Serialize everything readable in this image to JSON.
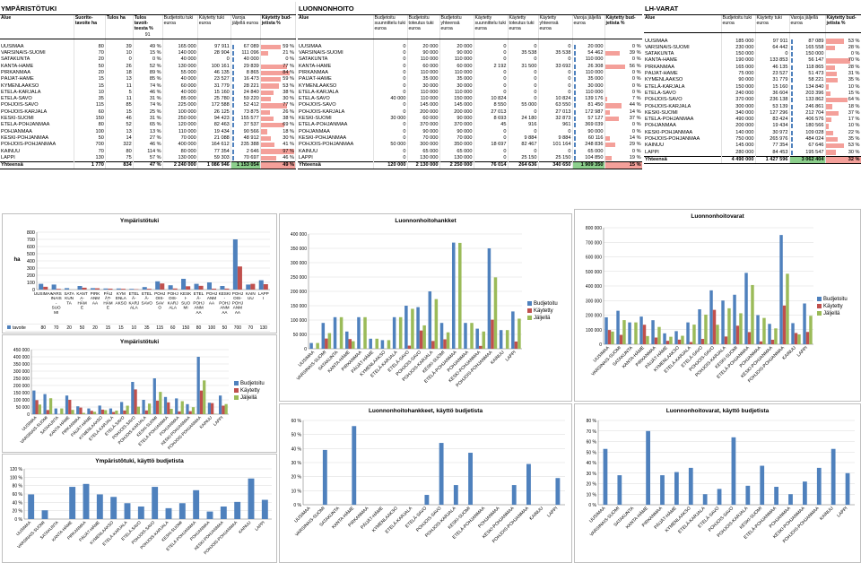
{
  "regions": [
    "UUSIMAA",
    "VARSINAIS-SUOMI",
    "SATAKUNTA",
    "KANTA-HÄME",
    "PIRKANMAA",
    "PÄIJÄT-HÄME",
    "KYMENLAAKSO",
    "ETELÄ-KARJALA",
    "ETELÄ-SAVO",
    "POHJOIS-SAVO",
    "POHJOIS-KARJALA",
    "KESKI-SUOMI",
    "ETELÄ-POHJANMAA",
    "POHJANMAA",
    "KESKI-POHJANMAA",
    "POHJOIS-POHJANMAA",
    "KAINUU",
    "LAPPI"
  ],
  "region_labels_wrapped": [
    "UUSIMAA",
    "VARS INAIS - SUO MI",
    "SATA KUN TA",
    "KANT A- HÄM E",
    "PIRK ANM AA",
    "PÄIJ ÄT- HÄM E",
    "KYM ENLA AKSO",
    "ETEL Ä- KARJ ALA",
    "ETEL Ä- SAVO",
    "POHJ OIS- SAV O",
    "POHJ OIS- KARJ ALA",
    "KESK I- SUO MI",
    "ETEL Ä- POHJ ANM AA",
    "POHJ ANM AA",
    "KESKI - POHJ ANM AA",
    "POHJ OIS- POHJ ANM AA",
    "KAIN UU",
    "LAPP I"
  ],
  "colors": {
    "blue": "#4f81bd",
    "red": "#c0504d",
    "green": "#9bbb59",
    "pctbar": "#f4a09a",
    "total_green": "#8ccf8c",
    "axis": "#808080",
    "grid": "#d9d9d9"
  },
  "section1": {
    "title": "YMPÄRISTÖTUKI",
    "region_header": "Alue",
    "headers": [
      "Suorite-tavoite ha",
      "Tulos ha",
      "Tulos tavoit-teesta %",
      "Budjetoitu tuki euroa",
      "Käytetty tuki euroa",
      "Varoja jäljellä euroa",
      "Käytetty bud-jetista %"
    ],
    "extra_header": "91",
    "rows": [
      [
        "80",
        "39",
        "49 %",
        "165 000",
        "97 911",
        "67 089",
        "59 %"
      ],
      [
        "70",
        "10",
        "15 %",
        "140 000",
        "28 904",
        "111 096",
        "21 %"
      ],
      [
        "20",
        "0",
        "0 %",
        "40 000",
        "0",
        "40 000",
        "0 %"
      ],
      [
        "50",
        "26",
        "52 %",
        "130 000",
        "100 161",
        "29 839",
        "77 %"
      ],
      [
        "20",
        "18",
        "89 %",
        "55 000",
        "46 135",
        "8 865",
        "84 %"
      ],
      [
        "15",
        "13",
        "85 %",
        "40 000",
        "23 527",
        "16 473",
        "59 %"
      ],
      [
        "15",
        "11",
        "74 %",
        "60 000",
        "31 779",
        "28 221",
        "53 %"
      ],
      [
        "10",
        "5",
        "46 %",
        "40 000",
        "15 160",
        "24 840",
        "38 %"
      ],
      [
        "35",
        "11",
        "31 %",
        "85 000",
        "25 780",
        "59 220",
        "30 %"
      ],
      [
        "115",
        "85",
        "74 %",
        "225 000",
        "172 588",
        "52 412",
        "77 %"
      ],
      [
        "60",
        "15",
        "25 %",
        "100 000",
        "26 125",
        "73 875",
        "26 %"
      ],
      [
        "150",
        "46",
        "31 %",
        "250 000",
        "94 423",
        "155 577",
        "38 %"
      ],
      [
        "80",
        "52",
        "65 %",
        "120 000",
        "82 463",
        "37 537",
        "69 %"
      ],
      [
        "100",
        "13",
        "13 %",
        "110 000",
        "19 434",
        "90 566",
        "18 %"
      ],
      [
        "50",
        "14",
        "27 %",
        "70 000",
        "21 088",
        "48 912",
        "30 %"
      ],
      [
        "700",
        "322",
        "46 %",
        "400 000",
        "164 612",
        "235 388",
        "41 %"
      ],
      [
        "70",
        "80",
        "114 %",
        "80 000",
        "77 354",
        "2 646",
        "97 %"
      ],
      [
        "130",
        "75",
        "57 %",
        "130 000",
        "59 303",
        "70 697",
        "46 %"
      ]
    ],
    "total": [
      "Yhteensä",
      "1 770",
      "834",
      "47 %",
      "2 240 000",
      "1 086 946",
      "1 153 054",
      "49 %"
    ]
  },
  "section2": {
    "title": "LUONNONHOITO",
    "region_header": "Alue",
    "headers": [
      "Budjetoitu suunnittelu tuki euroa",
      "Budjetoitu toteutus tuki euroa",
      "Budjetoitu yhteensä euroa",
      "Käytetty suunnittelu tuki euroa",
      "Käytetty toteutus tuki euroa",
      "Käytetty yhteensä euroa",
      "Varoja jäljellä euroa",
      "Käytetty bud-jetista %"
    ],
    "rows": [
      [
        "0",
        "20 000",
        "20 000",
        "0",
        "0",
        "0",
        "20 000",
        "0 %"
      ],
      [
        "0",
        "90 000",
        "90 000",
        "0",
        "35 538",
        "35 538",
        "54 462",
        "39 %"
      ],
      [
        "0",
        "110 000",
        "110 000",
        "0",
        "0",
        "0",
        "110 000",
        "0 %"
      ],
      [
        "0",
        "60 000",
        "60 000",
        "2 192",
        "31 500",
        "33 692",
        "26 308",
        "56 %"
      ],
      [
        "0",
        "110 000",
        "110 000",
        "0",
        "0",
        "0",
        "110 000",
        "0 %"
      ],
      [
        "0",
        "35 000",
        "35 000",
        "0",
        "0",
        "0",
        "35 000",
        "0 %"
      ],
      [
        "0",
        "30 000",
        "30 000",
        "0",
        "0",
        "0",
        "30 000",
        "0 %"
      ],
      [
        "0",
        "110 000",
        "110 000",
        "0",
        "0",
        "0",
        "110 000",
        "0 %"
      ],
      [
        "40 000",
        "110 000",
        "150 000",
        "10 824",
        "0",
        "10 824",
        "139 176",
        "7 %"
      ],
      [
        "0",
        "145 000",
        "145 000",
        "8 550",
        "55 000",
        "63 550",
        "81 450",
        "44 %"
      ],
      [
        "0",
        "200 000",
        "200 000",
        "27 013",
        "0",
        "27 013",
        "172 987",
        "14 %"
      ],
      [
        "30 000",
        "60 000",
        "90 000",
        "8 693",
        "24 180",
        "32 873",
        "57 127",
        "37 %"
      ],
      [
        "0",
        "370 000",
        "370 000",
        "45",
        "916",
        "961",
        "369 039",
        "0 %"
      ],
      [
        "0",
        "90 000",
        "90 000",
        "0",
        "0",
        "0",
        "90 000",
        "0 %"
      ],
      [
        "0",
        "70 000",
        "70 000",
        "0",
        "9 884",
        "9 884",
        "60 116",
        "14 %"
      ],
      [
        "50 000",
        "300 000",
        "350 000",
        "18 697",
        "82 467",
        "101 164",
        "248 836",
        "29 %"
      ],
      [
        "0",
        "65 000",
        "65 000",
        "0",
        "0",
        "0",
        "65 000",
        "0 %"
      ],
      [
        "0",
        "130 000",
        "130 000",
        "0",
        "25 150",
        "25 150",
        "104 850",
        "19 %"
      ]
    ],
    "total": [
      "Yhteensä",
      "120 000",
      "2 130 000",
      "2 250 000",
      "76 014",
      "264 636",
      "340 650",
      "1 909 350",
      "15 %"
    ]
  },
  "section3": {
    "title": "LH-VARAT",
    "region_header": "Alue",
    "headers": [
      "Budjetoitu tuki euroa",
      "Käytetty tuki euroa",
      "Varoja jäljellä euroa",
      "Käytetty bud-jetista %"
    ],
    "rows": [
      [
        "185 000",
        "97 911",
        "87 089",
        "53 %"
      ],
      [
        "230 000",
        "64 442",
        "165 558",
        "28 %"
      ],
      [
        "150 000",
        "0",
        "150 000",
        "0 %"
      ],
      [
        "190 000",
        "133 853",
        "56 147",
        "70 %"
      ],
      [
        "165 000",
        "46 135",
        "118 865",
        "28 %"
      ],
      [
        "75 000",
        "23 527",
        "51 473",
        "31 %"
      ],
      [
        "90 000",
        "31 779",
        "58 221",
        "35 %"
      ],
      [
        "150 000",
        "15 160",
        "134 840",
        "10 %"
      ],
      [
        "240 000",
        "36 604",
        "203 396",
        "15 %"
      ],
      [
        "370 000",
        "236 138",
        "133 862",
        "64 %"
      ],
      [
        "300 000",
        "53 139",
        "246 861",
        "18 %"
      ],
      [
        "340 000",
        "127 296",
        "212 704",
        "37 %"
      ],
      [
        "490 000",
        "83 424",
        "406 576",
        "17 %"
      ],
      [
        "200 000",
        "19 434",
        "180 566",
        "10 %"
      ],
      [
        "140 000",
        "30 972",
        "109 028",
        "22 %"
      ],
      [
        "750 000",
        "265 976",
        "484 024",
        "35 %"
      ],
      [
        "145 000",
        "77 354",
        "67 646",
        "53 %"
      ],
      [
        "280 000",
        "84 453",
        "195 547",
        "30 %"
      ]
    ],
    "total": [
      "Yhteensä",
      "4 490 000",
      "1 427 596",
      "3 062 404",
      "32 %"
    ]
  },
  "chart_data": [
    {
      "type": "bar",
      "title": "Ympäristötuki",
      "ylabel": "ha",
      "ylim": [
        0,
        800
      ],
      "yticks": [
        "0",
        "100",
        "200",
        "300",
        "400",
        "500",
        "600",
        "700",
        "800"
      ],
      "series": [
        {
          "name": "tavoite",
          "values": [
            80,
            70,
            20,
            50,
            20,
            15,
            15,
            10,
            35,
            115,
            60,
            150,
            80,
            100,
            50,
            700,
            70,
            130
          ]
        },
        {
          "name": "Tulos",
          "values": [
            39,
            10,
            0,
            26,
            18,
            13,
            11,
            5,
            11,
            85,
            15,
            46,
            52,
            13,
            14,
            322,
            80,
            75
          ]
        }
      ]
    },
    {
      "type": "bar",
      "title": "Ympäristötuki",
      "ylim": [
        0,
        450000
      ],
      "yticks": [
        "0",
        "50 000",
        "100 000",
        "150 000",
        "200 000",
        "250 000",
        "300 000",
        "350 000",
        "400 000",
        "450 000"
      ],
      "series": [
        {
          "name": "Budjetoitu",
          "values": [
            165000,
            140000,
            40000,
            130000,
            55000,
            40000,
            60000,
            40000,
            85000,
            225000,
            100000,
            250000,
            120000,
            110000,
            70000,
            400000,
            80000,
            130000
          ]
        },
        {
          "name": "Käytetty",
          "values": [
            97911,
            28904,
            0,
            100161,
            46135,
            23527,
            31779,
            15160,
            25780,
            172588,
            26125,
            94423,
            82463,
            19434,
            21088,
            164612,
            77354,
            59303
          ]
        },
        {
          "name": "Jäljellä",
          "values": [
            67089,
            111096,
            40000,
            29839,
            8865,
            16473,
            28221,
            24840,
            59220,
            52412,
            73875,
            155577,
            37537,
            90566,
            48912,
            235388,
            2646,
            70697
          ]
        }
      ]
    },
    {
      "type": "bar",
      "title": "Ympäristötuki, käyttö budjetista",
      "ylim": [
        0,
        120
      ],
      "yticks": [
        "0 %",
        "20 %",
        "40 %",
        "60 %",
        "80 %",
        "100 %",
        "120 %"
      ],
      "series": [
        {
          "name": "Käytetty bud-jetista %",
          "values": [
            59,
            21,
            0,
            77,
            84,
            59,
            53,
            38,
            30,
            77,
            26,
            38,
            69,
            18,
            30,
            41,
            97,
            46
          ]
        }
      ]
    },
    {
      "type": "bar",
      "title": "Luonnonhoitohankket",
      "ylim": [
        0,
        400000
      ],
      "yticks": [
        "0",
        "50 000",
        "100 000",
        "150 000",
        "200 000",
        "250 000",
        "300 000",
        "350 000",
        "400 000"
      ],
      "series": [
        {
          "name": "Budjetoitu",
          "values": [
            20000,
            90000,
            110000,
            60000,
            110000,
            35000,
            30000,
            110000,
            150000,
            145000,
            200000,
            90000,
            370000,
            90000,
            70000,
            350000,
            65000,
            130000
          ]
        },
        {
          "name": "Käytetty",
          "values": [
            0,
            35538,
            0,
            33692,
            0,
            0,
            0,
            0,
            10824,
            63550,
            27013,
            32873,
            961,
            0,
            9884,
            101164,
            0,
            25150
          ]
        },
        {
          "name": "Jäljellä",
          "values": [
            20000,
            54462,
            110000,
            26308,
            110000,
            35000,
            30000,
            110000,
            139176,
            81450,
            172987,
            57127,
            369039,
            90000,
            60116,
            248836,
            65000,
            104850
          ]
        }
      ]
    },
    {
      "type": "bar",
      "title": "Luonnonhoitohankkeet, käyttö budjetista",
      "ylim": [
        0,
        60
      ],
      "yticks": [
        "0 %",
        "10 %",
        "20 %",
        "30 %",
        "40 %",
        "50 %",
        "60 %"
      ],
      "series": [
        {
          "name": "Käytetty bud-jetista %",
          "values": [
            0,
            39,
            0,
            56,
            0,
            0,
            0,
            0,
            7,
            44,
            14,
            37,
            0,
            0,
            14,
            29,
            0,
            19
          ]
        }
      ]
    },
    {
      "type": "bar",
      "title": "Luonnonhoitovarat",
      "ylim": [
        0,
        800000
      ],
      "yticks": [
        "0",
        "100 000",
        "200 000",
        "300 000",
        "400 000",
        "500 000",
        "600 000",
        "700 000",
        "800 000"
      ],
      "series": [
        {
          "name": "Budjetoitu",
          "values": [
            185000,
            230000,
            150000,
            190000,
            165000,
            75000,
            90000,
            150000,
            240000,
            370000,
            300000,
            340000,
            490000,
            200000,
            140000,
            750000,
            145000,
            280000
          ]
        },
        {
          "name": "Käytetty",
          "values": [
            97911,
            64442,
            0,
            133853,
            46135,
            23527,
            31779,
            15160,
            36604,
            236138,
            53139,
            127296,
            83424,
            19434,
            30972,
            265976,
            77354,
            84453
          ]
        },
        {
          "name": "Jäljellä",
          "values": [
            87089,
            165558,
            150000,
            56147,
            118865,
            51473,
            58221,
            134840,
            203396,
            133862,
            246861,
            212704,
            406576,
            180566,
            109028,
            484024,
            67646,
            195547
          ]
        }
      ]
    },
    {
      "type": "bar",
      "title": "Luonnonhoitovarat, käyttö budjetista",
      "ylim": [
        0,
        80
      ],
      "yticks": [
        "0 %",
        "10 %",
        "20 %",
        "30 %",
        "40 %",
        "50 %",
        "60 %",
        "70 %",
        "80 %"
      ],
      "series": [
        {
          "name": "Käytetty bud-jetista %",
          "values": [
            53,
            28,
            0,
            70,
            28,
            31,
            35,
            10,
            15,
            64,
            18,
            37,
            17,
            10,
            22,
            35,
            53,
            30
          ]
        }
      ]
    }
  ]
}
